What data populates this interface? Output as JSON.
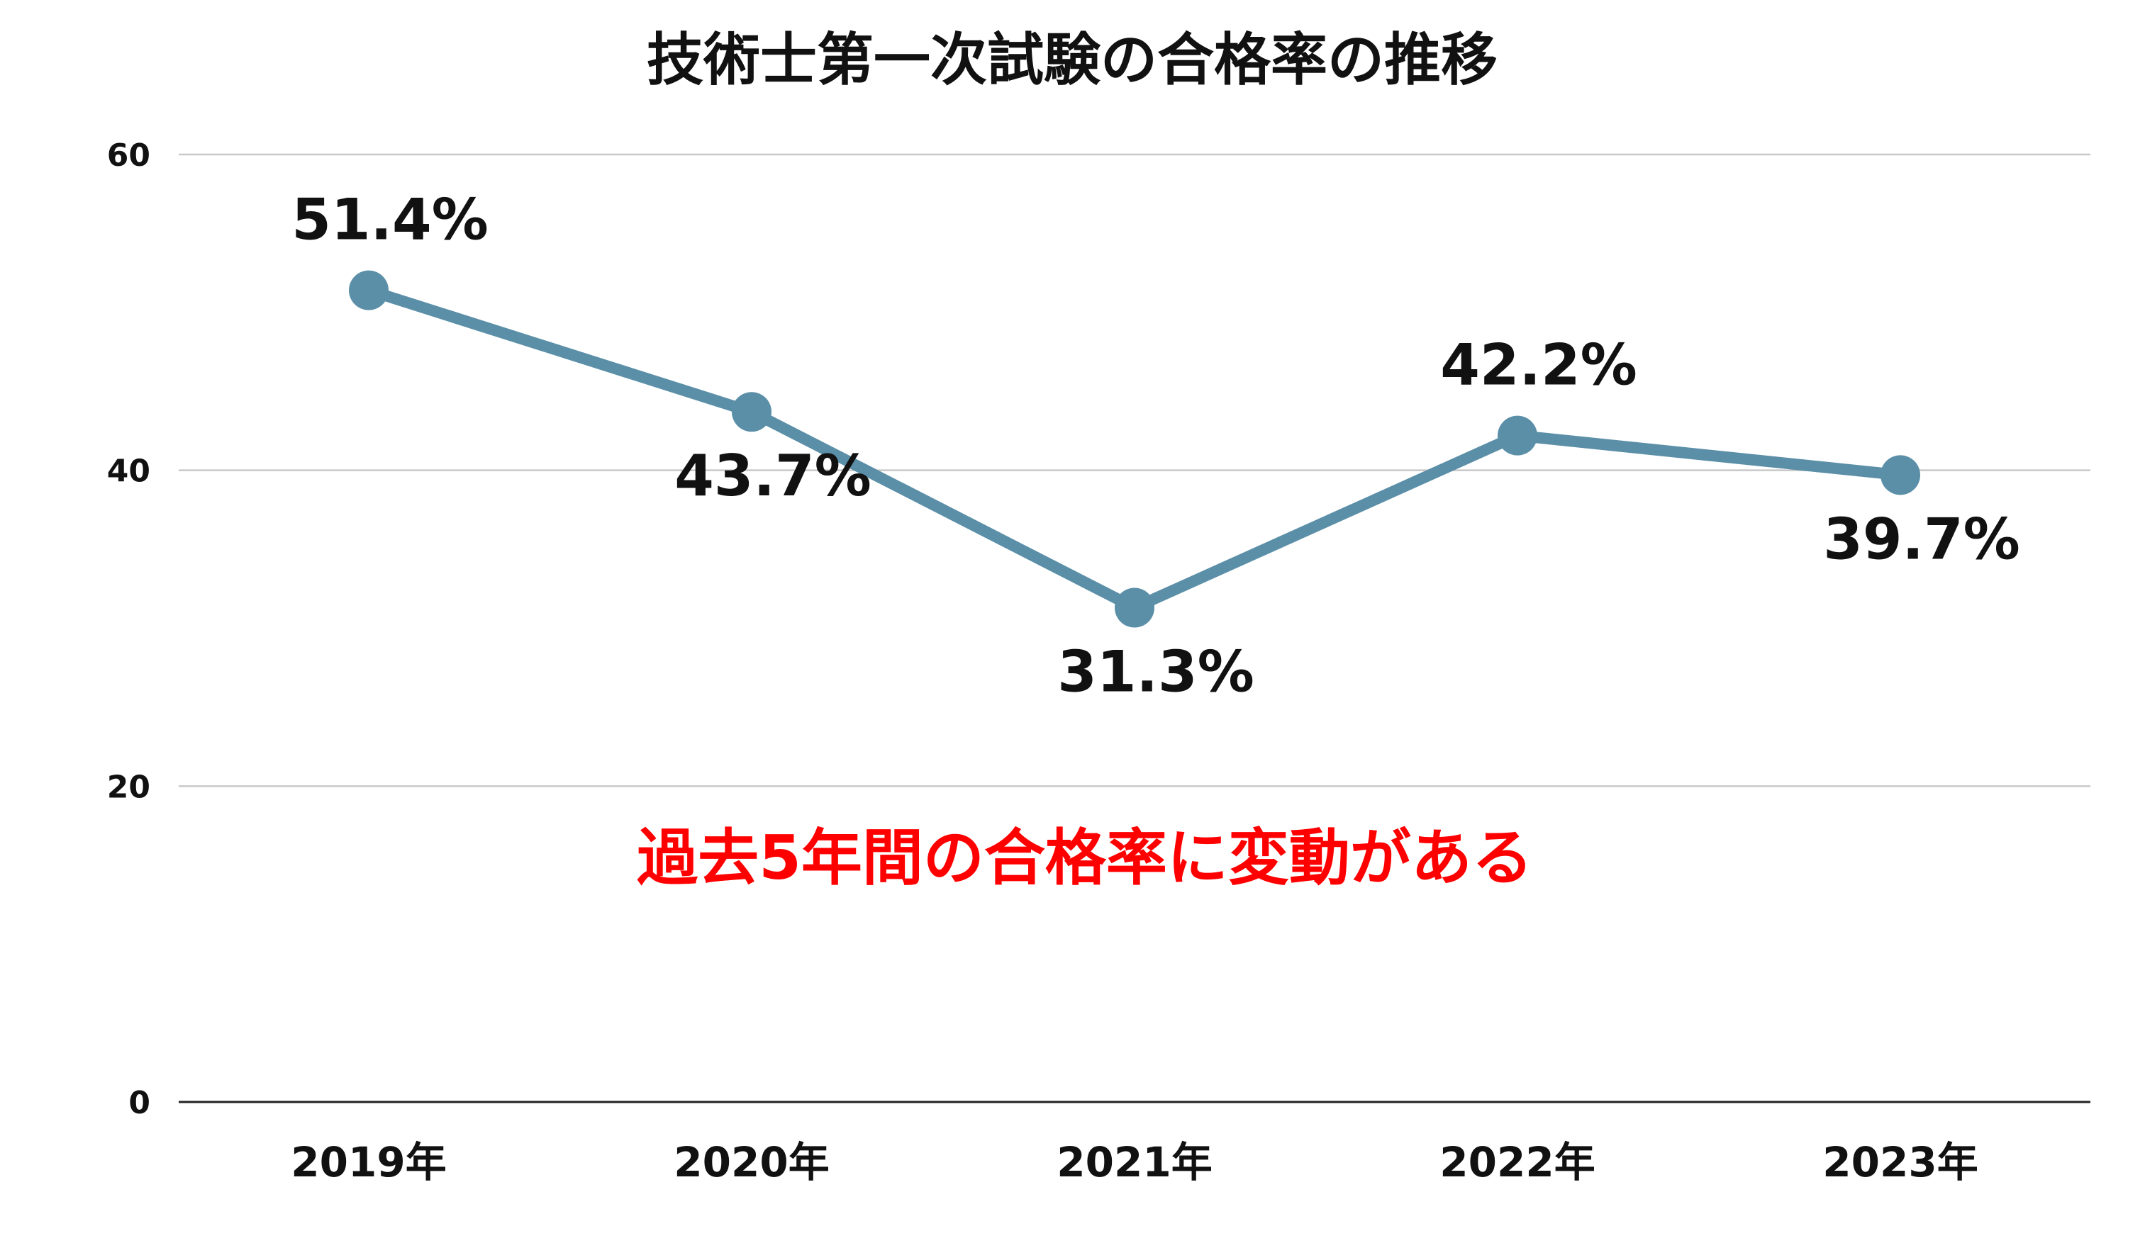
{
  "chart_data": {
    "type": "line",
    "title": "技術士第一次試験の合格率の推移",
    "categories": [
      "2019年",
      "2020年",
      "2021年",
      "2022年",
      "2023年"
    ],
    "series": [
      {
        "values": [
          51.4,
          43.7,
          31.3,
          42.2,
          39.7
        ],
        "data_labels": [
          "51.4%",
          "43.7%",
          "31.3%",
          "42.2%",
          "39.7%"
        ],
        "label_positions": [
          "above",
          "below",
          "below",
          "above",
          "below"
        ]
      }
    ],
    "y_ticks": [
      "0",
      "20",
      "40",
      "60"
    ],
    "ylim": [
      0,
      60
    ],
    "grid": true,
    "annotation": "過去5年間の合格率に変動がある",
    "colors": {
      "line": "#5b8fa8",
      "grid": "#c8c8c8",
      "baseline": "#222222",
      "annotation": "#ff0000"
    }
  }
}
